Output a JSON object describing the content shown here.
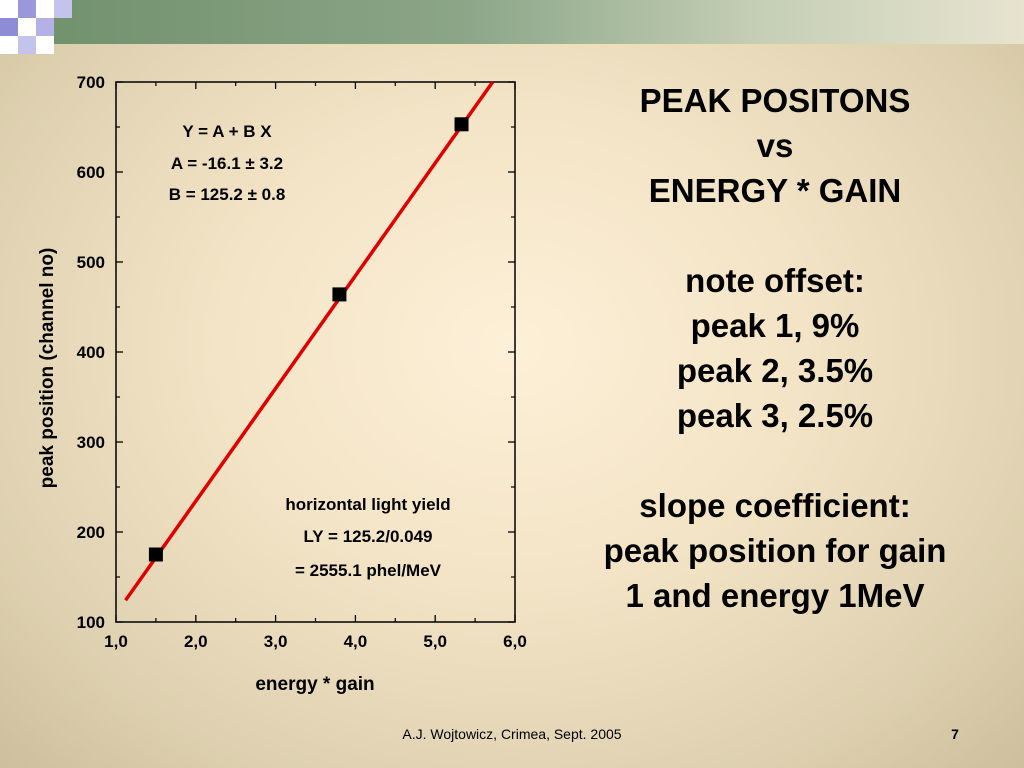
{
  "slide": {
    "title_lines": [
      "PEAK POSITONS",
      "vs",
      "ENERGY * GAIN"
    ],
    "note_lines": [
      "note offset:",
      "peak 1, 9%",
      "peak 2, 3.5%",
      "peak 3, 2.5%"
    ],
    "slope_lines": [
      "slope coefficient:",
      "peak position for gain",
      "1 and energy 1MeV"
    ],
    "footer": "A.J. Wojtowicz, Crimea, Sept. 2005",
    "page_number": "7"
  },
  "colors": {
    "fit_line": "#e00000",
    "points": "#000000",
    "accent_band": "#7f9a7a",
    "accent_squares": "#8e8cd6"
  },
  "chart_data": {
    "type": "scatter",
    "xlabel": "energy * gain",
    "ylabel": "peak position (channel no)",
    "xlim": [
      1.0,
      6.0
    ],
    "ylim": [
      100,
      700
    ],
    "x_ticks": [
      "1,0",
      "2,0",
      "3,0",
      "4,0",
      "5,0",
      "6,0"
    ],
    "y_ticks": [
      "100",
      "200",
      "300",
      "400",
      "500",
      "600",
      "700"
    ],
    "points": [
      {
        "x": 1.5,
        "y": 175
      },
      {
        "x": 3.8,
        "y": 464
      },
      {
        "x": 5.33,
        "y": 653
      }
    ],
    "fit": {
      "A": -16.1,
      "B": 125.2,
      "x_range": [
        1.12,
        5.72
      ]
    },
    "fit_text": [
      "Y = A + B X",
      "A = -16.1 ± 3.2",
      "B = 125.2 ± 0.8"
    ],
    "light_yield_text": [
      "horizontal light yield",
      "LY = 125.2/0.049",
      "= 2555.1 phel/MeV"
    ]
  }
}
